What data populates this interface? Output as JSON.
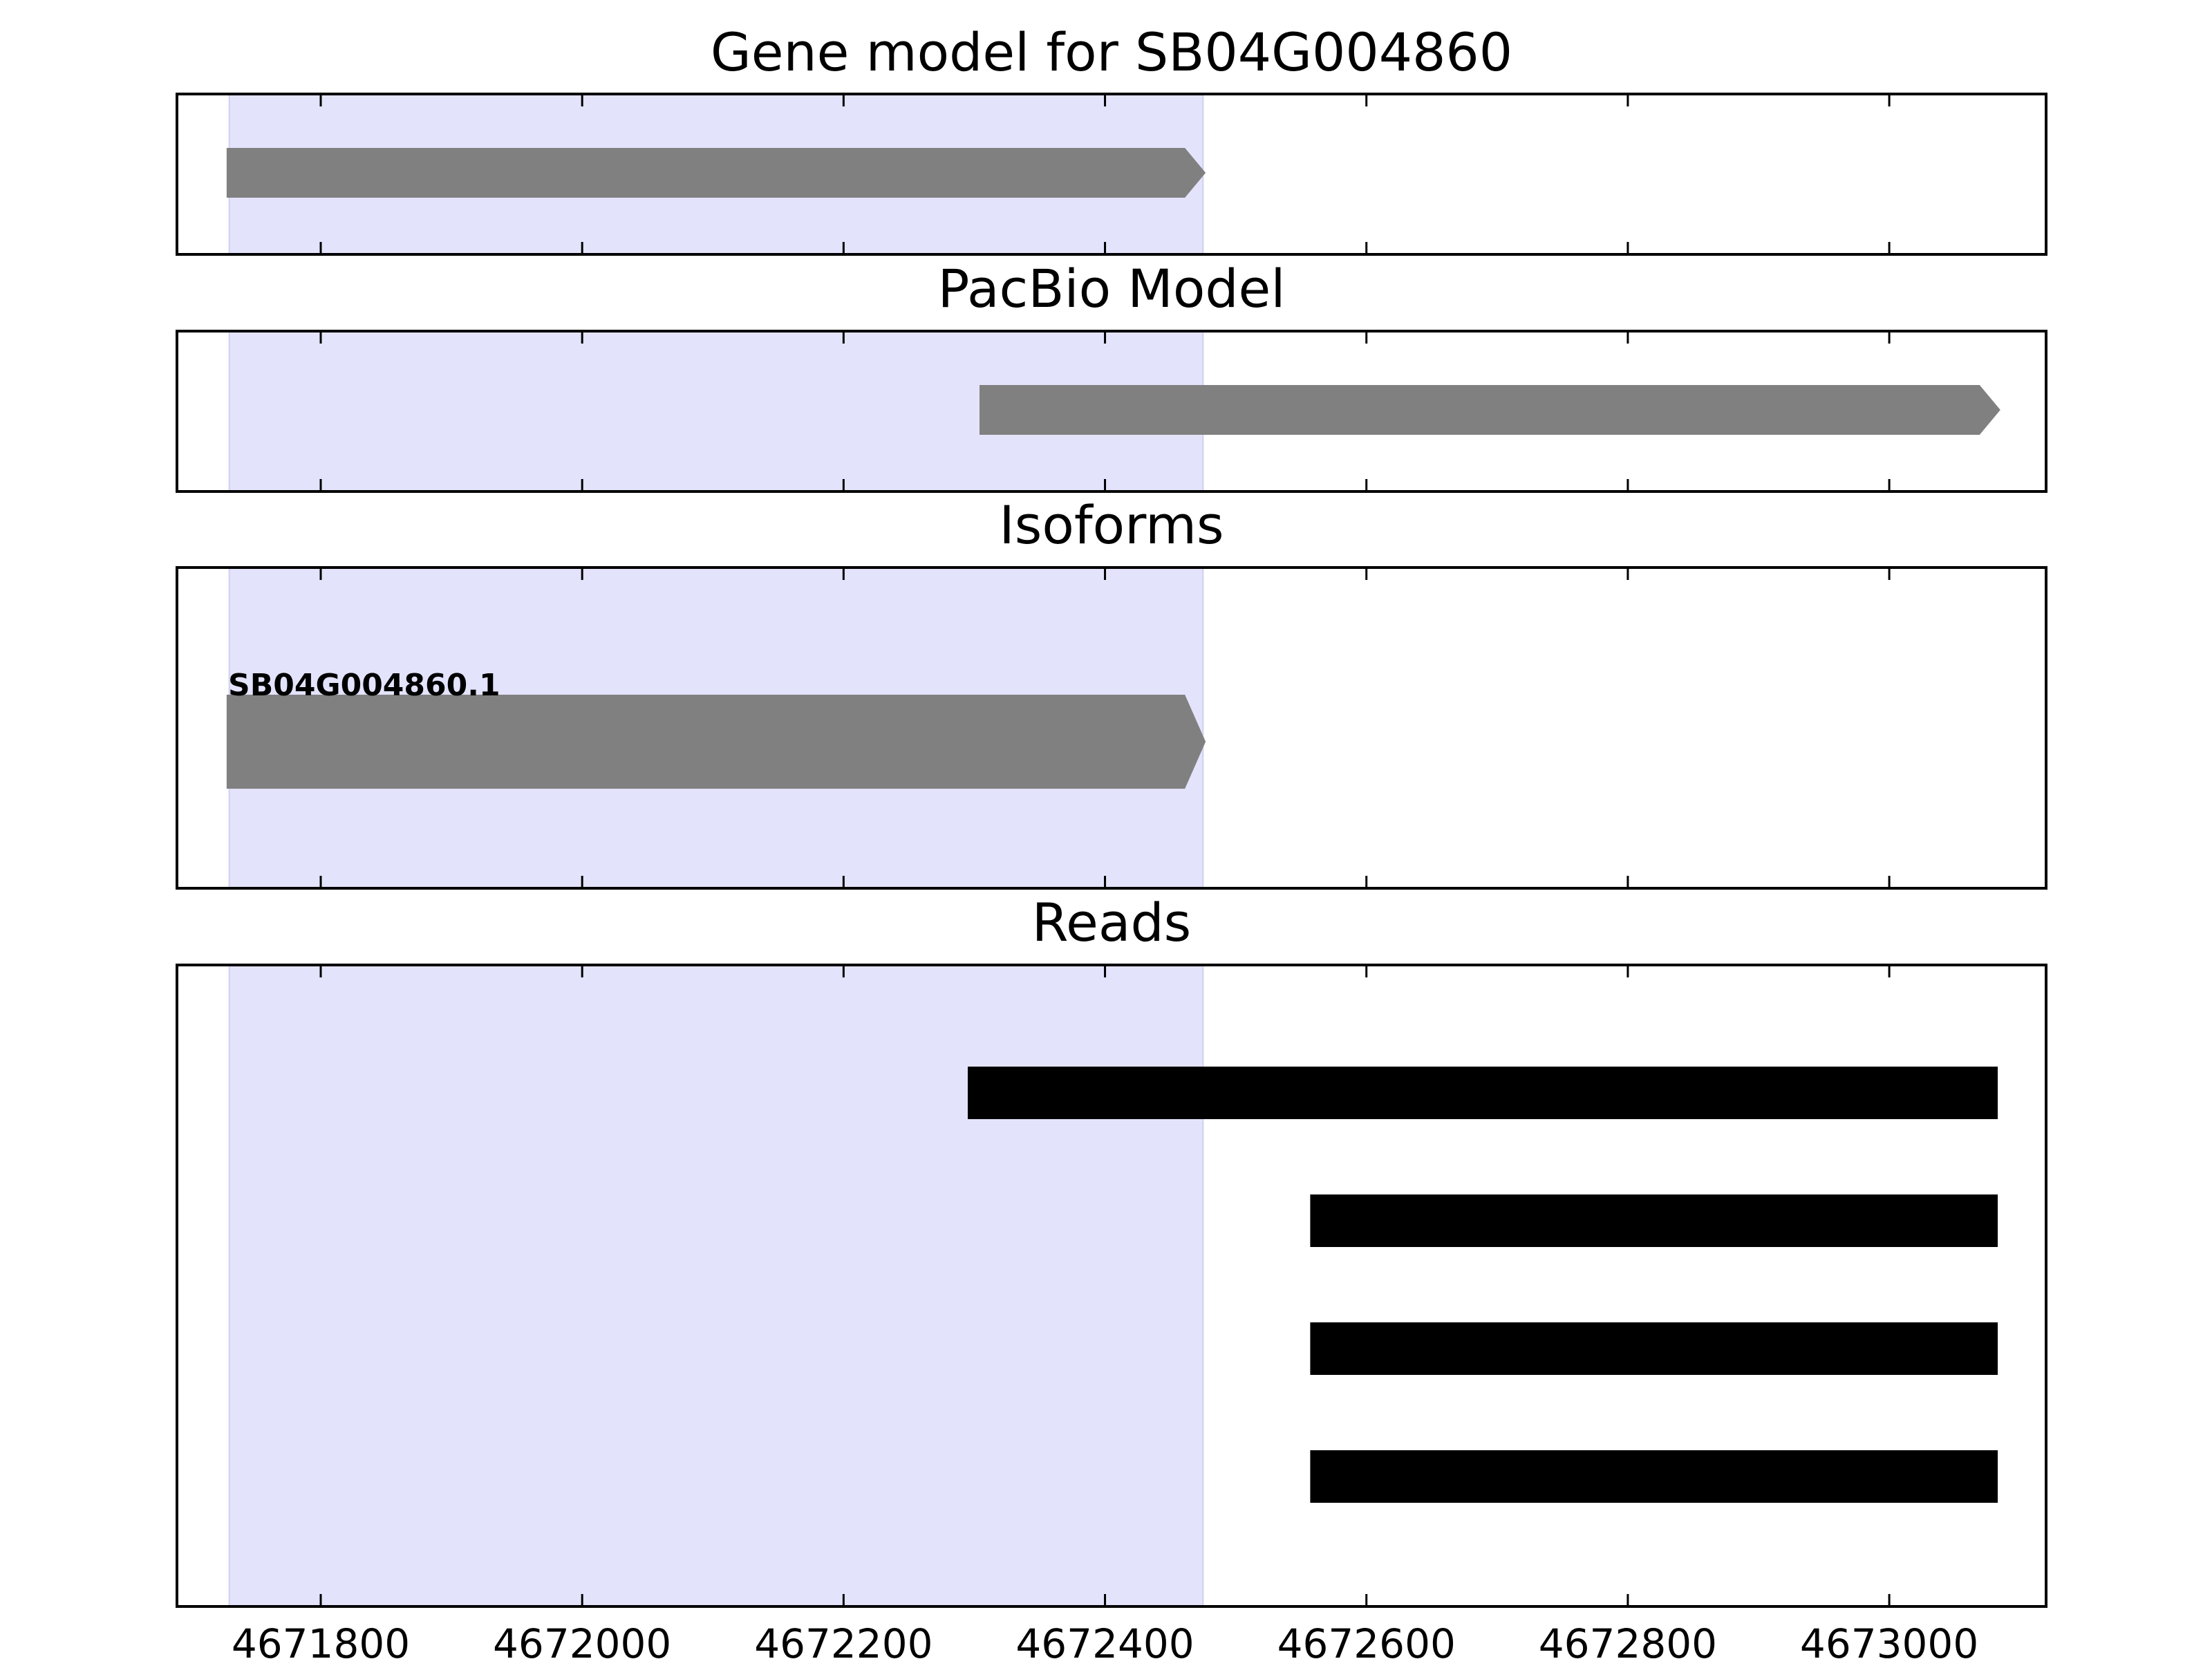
{
  "chart_data": {
    "type": "gene-model-tracks",
    "x_range": [
      4671690,
      4673120
    ],
    "highlight_region": {
      "start": 4671730,
      "end": 4672475,
      "color": "#e3e3fc"
    },
    "x_ticks": [
      4671800,
      4672000,
      4672200,
      4672400,
      4672600,
      4672800,
      4673000
    ],
    "x_tick_labels": [
      "4671800",
      "4672000",
      "4672200",
      "4672400",
      "4672600",
      "4672800",
      "4673000"
    ],
    "colors": {
      "model": "#808080",
      "read": "#000000",
      "frame": "#000000"
    },
    "panels": [
      {
        "id": "gene-model",
        "title": "Gene model for SB04G004860",
        "features": [
          {
            "start": 4671728,
            "end": 4672477,
            "strand": "+",
            "shape": "arrow",
            "color": "#808080"
          }
        ]
      },
      {
        "id": "pacbio-model",
        "title": "PacBio Model",
        "features": [
          {
            "start": 4672304,
            "end": 4673085,
            "strand": "+",
            "shape": "arrow",
            "color": "#808080"
          }
        ]
      },
      {
        "id": "isoforms",
        "title": "Isoforms",
        "features": [
          {
            "label": "SB04G004860.1",
            "start": 4671728,
            "end": 4672477,
            "strand": "+",
            "shape": "arrow",
            "color": "#808080"
          }
        ]
      },
      {
        "id": "reads",
        "title": "Reads",
        "features": [
          {
            "start": 4672295,
            "end": 4673083,
            "shape": "bar",
            "color": "#000000"
          },
          {
            "start": 4672557,
            "end": 4673083,
            "shape": "bar",
            "color": "#000000"
          },
          {
            "start": 4672557,
            "end": 4673083,
            "shape": "bar",
            "color": "#000000"
          },
          {
            "start": 4672557,
            "end": 4673083,
            "shape": "bar",
            "color": "#000000"
          }
        ]
      }
    ]
  }
}
